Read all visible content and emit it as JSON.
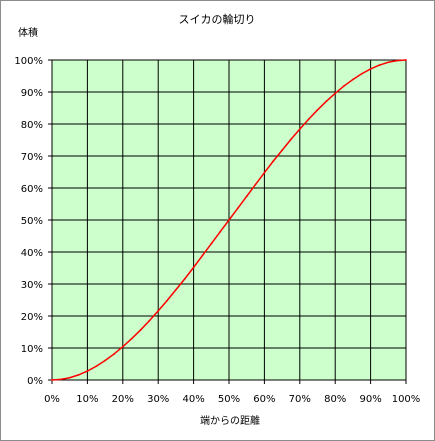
{
  "chart_data": {
    "type": "line",
    "title": "スイカの輪切り",
    "ylabel": "体積",
    "xlabel": "端からの距離",
    "x_tick_labels": [
      "0%",
      "10%",
      "20%",
      "30%",
      "40%",
      "50%",
      "60%",
      "70%",
      "80%",
      "90%",
      "100%"
    ],
    "y_tick_labels": [
      "0%",
      "10%",
      "20%",
      "30%",
      "40%",
      "50%",
      "60%",
      "70%",
      "80%",
      "90%",
      "100%"
    ],
    "xlim": [
      0,
      100
    ],
    "ylim": [
      0,
      100
    ],
    "grid": true,
    "legend": "none",
    "colors": {
      "plot_background": "#ccffcc",
      "line": "#ff0000",
      "grid": "#000000"
    },
    "series": [
      {
        "x": [
          0,
          2.5,
          5,
          7.5,
          10,
          12.5,
          15,
          17.5,
          20,
          22.5,
          25,
          27.5,
          30,
          32.5,
          35,
          37.5,
          40,
          42.5,
          45,
          47.5,
          50,
          52.5,
          55,
          57.5,
          60,
          62.5,
          65,
          67.5,
          70,
          72.5,
          75,
          77.5,
          80,
          82.5,
          85,
          87.5,
          90,
          92.5,
          95,
          97.5,
          100
        ],
        "values": [
          0,
          0.2,
          0.7,
          1.6,
          2.8,
          4.3,
          6.1,
          8.1,
          10.4,
          12.9,
          15.6,
          18.5,
          21.6,
          24.8,
          28.2,
          31.6,
          35.2,
          38.9,
          42.6,
          46.3,
          50,
          53.7,
          57.4,
          61.1,
          64.8,
          68.4,
          71.8,
          75.2,
          78.4,
          81.5,
          84.4,
          87.1,
          89.6,
          91.9,
          93.9,
          95.7,
          97.2,
          98.4,
          99.3,
          99.8,
          100
        ]
      }
    ]
  }
}
